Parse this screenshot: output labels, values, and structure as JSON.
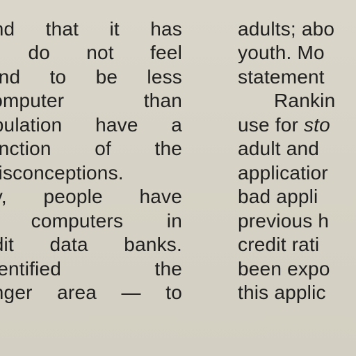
{
  "left_column": {
    "lines": [
      "",
      "and that it has",
      "y do not feel",
      "tend to be less",
      "computer than",
      "opulation have a",
      "function of the",
      "misconceptions.",
      "ey, people have",
      "f computers in",
      "edit data banks.",
      "identified the",
      "anger area — to",
      ""
    ]
  },
  "right_column": {
    "lines": [
      "",
      "adults; abo",
      "youth. Mo",
      "statement",
      "Rankin",
      "use for",
      "adult and",
      "applicatior",
      "bad appli",
      "previous h",
      "credit rati",
      "been expo",
      "this applic",
      ""
    ],
    "italic_fragment": "sto"
  }
}
